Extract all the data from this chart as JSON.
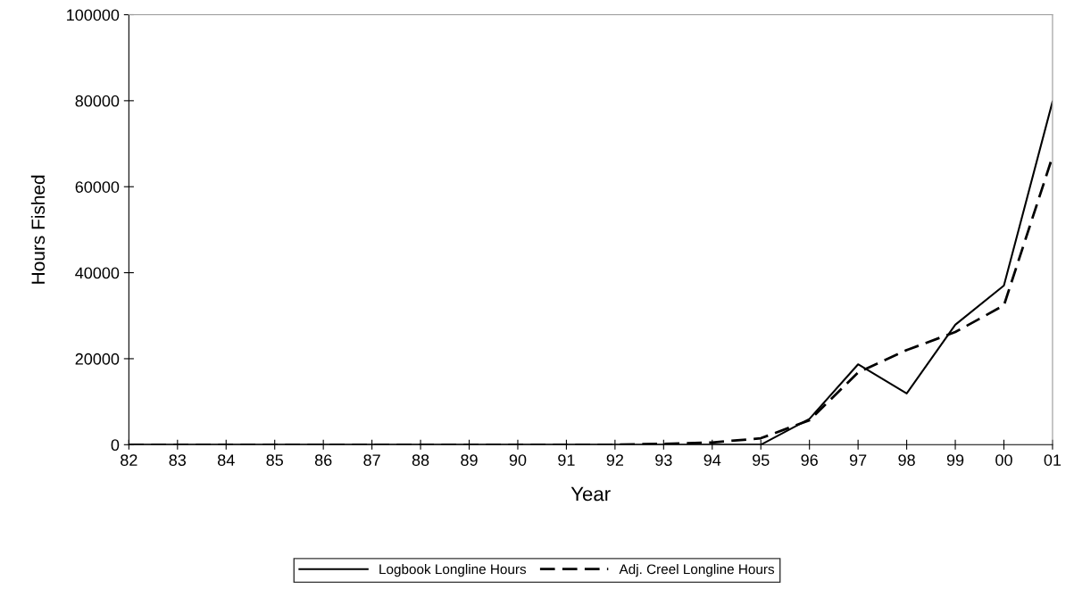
{
  "chart_data": {
    "type": "line",
    "xlabel": "Year",
    "ylabel": "Hours Fished",
    "categories": [
      "82",
      "83",
      "84",
      "85",
      "86",
      "87",
      "88",
      "89",
      "90",
      "91",
      "92",
      "93",
      "94",
      "95",
      "96",
      "97",
      "98",
      "99",
      "00",
      "01"
    ],
    "series": [
      {
        "name": "Logbook Longline Hours",
        "color": "#000000",
        "line_style": "solid",
        "values": [
          0,
          0,
          0,
          0,
          0,
          0,
          0,
          0,
          0,
          0,
          0,
          0,
          0,
          0,
          6000,
          18700,
          11900,
          27900,
          37000,
          79800
        ]
      },
      {
        "name": "Adj. Creel Longline Hours",
        "color": "#000000",
        "line_style": "dashed",
        "values": [
          0,
          0,
          0,
          0,
          0,
          0,
          0,
          0,
          0,
          0,
          0,
          200,
          500,
          1500,
          5700,
          16800,
          22000,
          26200,
          32400,
          67000
        ]
      }
    ],
    "ylim": [
      0,
      100000
    ],
    "yticks": [
      0,
      20000,
      40000,
      60000,
      80000,
      100000
    ],
    "grid": false,
    "legend": "bottom",
    "marker": "none"
  }
}
